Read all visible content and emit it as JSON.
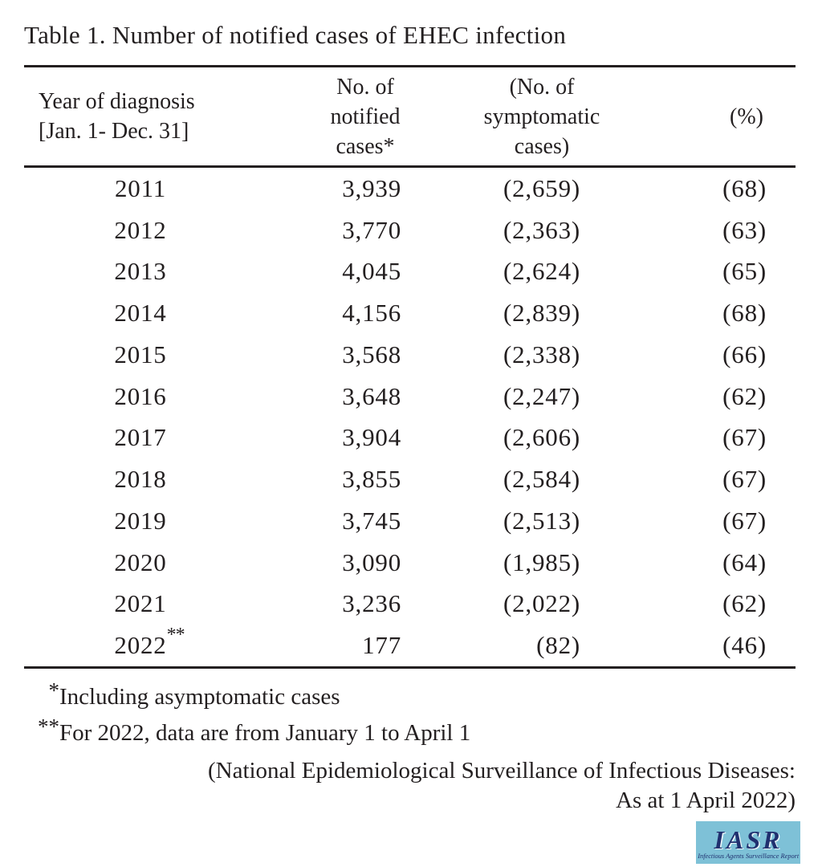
{
  "title": "Table 1. Number of notified cases of EHEC infection",
  "table": {
    "headers": [
      "Year of diagnosis\n[Jan. 1- Dec. 31]",
      "No. of\nnotified\ncases*",
      "(No. of\nsymptomatic\ncases)",
      "(%)"
    ],
    "rows": [
      {
        "year": "2011",
        "notified": "3,939",
        "symptomatic": "(2,659)",
        "percent": "(68)"
      },
      {
        "year": "2012",
        "notified": "3,770",
        "symptomatic": "(2,363)",
        "percent": "(63)"
      },
      {
        "year": "2013",
        "notified": "4,045",
        "symptomatic": "(2,624)",
        "percent": "(65)"
      },
      {
        "year": "2014",
        "notified": "4,156",
        "symptomatic": "(2,839)",
        "percent": "(68)"
      },
      {
        "year": "2015",
        "notified": "3,568",
        "symptomatic": "(2,338)",
        "percent": "(66)"
      },
      {
        "year": "2016",
        "notified": "3,648",
        "symptomatic": "(2,247)",
        "percent": "(62)"
      },
      {
        "year": "2017",
        "notified": "3,904",
        "symptomatic": "(2,606)",
        "percent": "(67)"
      },
      {
        "year": "2018",
        "notified": "3,855",
        "symptomatic": "(2,584)",
        "percent": "(67)"
      },
      {
        "year": "2019",
        "notified": "3,745",
        "symptomatic": "(2,513)",
        "percent": "(67)"
      },
      {
        "year": "2020",
        "notified": "3,090",
        "symptomatic": "(1,985)",
        "percent": "(64)"
      },
      {
        "year": "2021",
        "notified": "3,236",
        "symptomatic": "(2,022)",
        "percent": "(62)"
      },
      {
        "year": "2022",
        "year_sup": "**",
        "notified": "177",
        "symptomatic": "(82)",
        "percent": "(46)"
      }
    ]
  },
  "footnotes": [
    {
      "marker": "*",
      "text": "Including asymptomatic cases"
    },
    {
      "marker": "**",
      "text": "For 2022, data are from January 1 to April 1"
    }
  ],
  "source": {
    "lines": [
      "(National Epidemiological Surveillance of Infectious Diseases:",
      "As at 1 April 2022)"
    ]
  },
  "logo": {
    "text": "IASR",
    "subtitle": "Infectious Agents Surveillance Report",
    "background": "#7ec1d7",
    "color": "#20306f"
  },
  "colors": {
    "text": "#231f20",
    "rule": "#231f20"
  }
}
